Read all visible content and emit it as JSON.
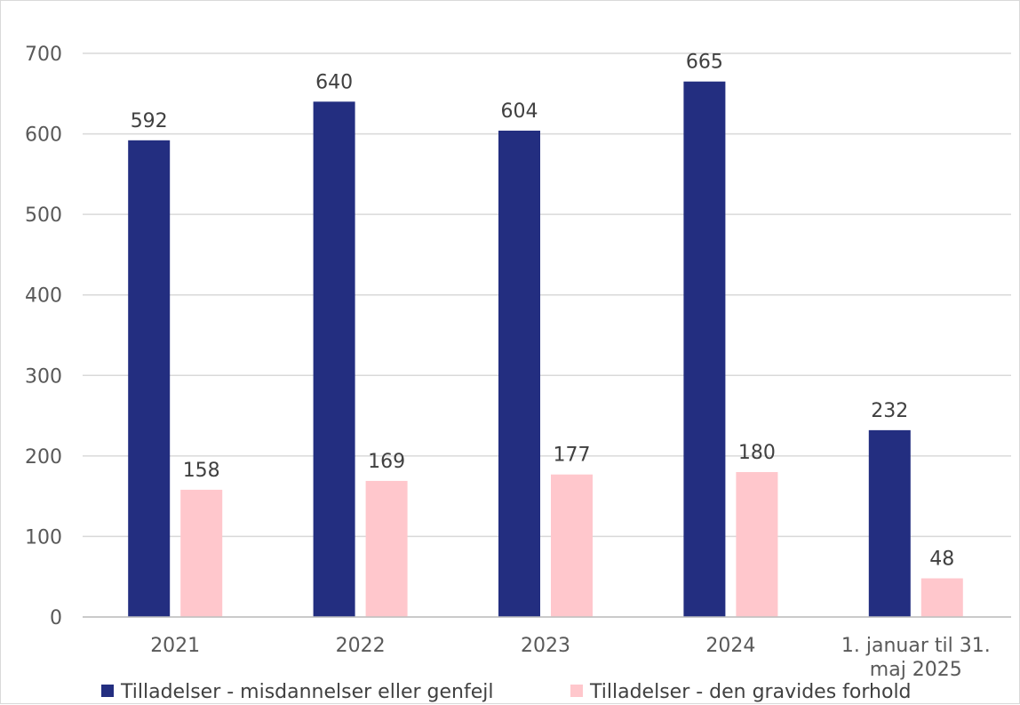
{
  "chart_data": {
    "type": "bar",
    "title": "",
    "xlabel": "",
    "ylabel": "",
    "ylim": [
      0,
      700
    ],
    "yticks": [
      "0",
      "100",
      "200",
      "300",
      "400",
      "500",
      "600",
      "700"
    ],
    "grid": true,
    "legend_position": "bottom",
    "categories": [
      [
        "2021"
      ],
      [
        "2022"
      ],
      [
        "2023"
      ],
      [
        "2024"
      ],
      [
        "1. januar til 31.",
        "maj 2025"
      ]
    ],
    "series": [
      {
        "name": "Tilladelser - misdannelser eller genfejl",
        "color": "#232E80",
        "values": [
          592,
          640,
          604,
          665,
          232
        ]
      },
      {
        "name": "Tilladelser - den gravides forhold",
        "color": "#FFC7CC",
        "values": [
          158,
          169,
          177,
          180,
          48
        ]
      }
    ]
  }
}
